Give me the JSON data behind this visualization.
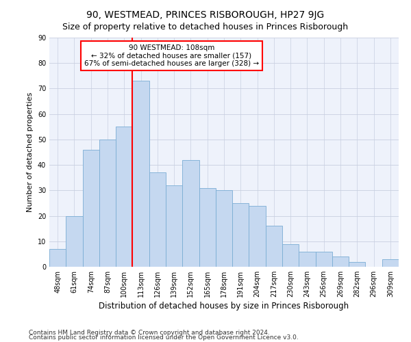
{
  "title": "90, WESTMEAD, PRINCES RISBOROUGH, HP27 9JG",
  "subtitle": "Size of property relative to detached houses in Princes Risborough",
  "xlabel": "Distribution of detached houses by size in Princes Risborough",
  "ylabel": "Number of detached properties",
  "categories": [
    "48sqm",
    "61sqm",
    "74sqm",
    "87sqm",
    "100sqm",
    "113sqm",
    "126sqm",
    "139sqm",
    "152sqm",
    "165sqm",
    "178sqm",
    "191sqm",
    "204sqm",
    "217sqm",
    "230sqm",
    "243sqm",
    "256sqm",
    "269sqm",
    "282sqm",
    "296sqm",
    "309sqm"
  ],
  "values": [
    7,
    20,
    46,
    50,
    55,
    73,
    37,
    32,
    42,
    31,
    30,
    25,
    24,
    16,
    9,
    6,
    6,
    4,
    2,
    0,
    3
  ],
  "bar_color": "#c5d8f0",
  "bar_edge_color": "#7aadd4",
  "vline_x": 4.5,
  "vline_color": "red",
  "annotation_line1": "90 WESTMEAD: 108sqm",
  "annotation_line2": "← 32% of detached houses are smaller (157)",
  "annotation_line3": "67% of semi-detached houses are larger (328) →",
  "annotation_box_color": "white",
  "annotation_box_edge_color": "red",
  "ylim": [
    0,
    90
  ],
  "yticks": [
    0,
    10,
    20,
    30,
    40,
    50,
    60,
    70,
    80,
    90
  ],
  "footnote1": "Contains HM Land Registry data © Crown copyright and database right 2024.",
  "footnote2": "Contains public sector information licensed under the Open Government Licence v3.0.",
  "background_color": "#ffffff",
  "plot_bg_color": "#eef2fb",
  "grid_color": "#c8cfe0",
  "title_fontsize": 10,
  "subtitle_fontsize": 9,
  "xlabel_fontsize": 8.5,
  "ylabel_fontsize": 8,
  "tick_fontsize": 7,
  "annot_fontsize": 7.5,
  "footnote_fontsize": 6.5
}
